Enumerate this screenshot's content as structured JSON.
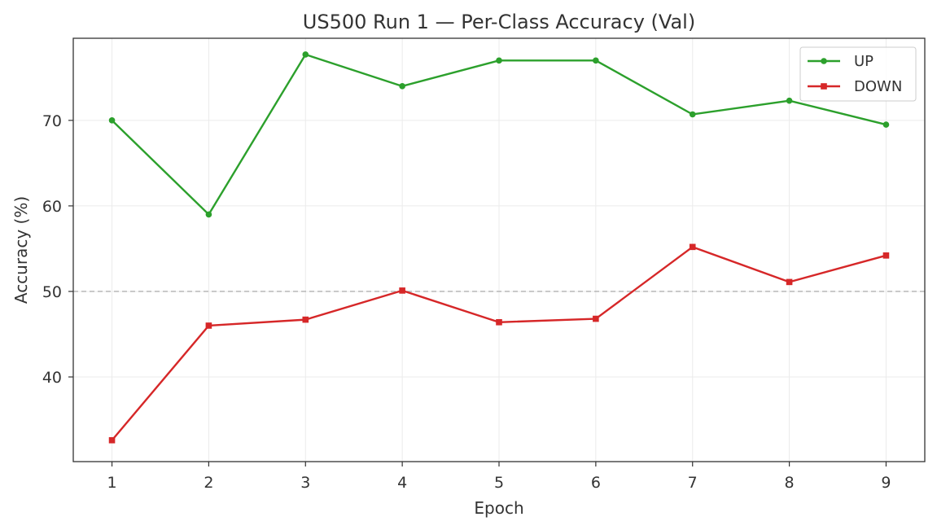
{
  "chart_data": {
    "type": "line",
    "title": "US500 Run 1 — Per-Class Accuracy (Val)",
    "xlabel": "Epoch",
    "ylabel": "Accuracy (%)",
    "x": [
      1,
      2,
      3,
      4,
      5,
      6,
      7,
      8,
      9
    ],
    "x_ticks": [
      "1",
      "2",
      "3",
      "4",
      "5",
      "6",
      "7",
      "8",
      "9"
    ],
    "y_ticks": [
      "40",
      "50",
      "60",
      "70"
    ],
    "xlim": [
      0.6,
      9.4
    ],
    "ylim": [
      30.1,
      79.6
    ],
    "grid": true,
    "legend_position": "top-right",
    "reference_line": {
      "y": 50,
      "style": "dashed",
      "color": "#b0b0b0"
    },
    "series": [
      {
        "name": "UP",
        "color": "#2ca02c",
        "marker": "circle",
        "values": [
          70.0,
          59.0,
          77.7,
          74.0,
          77.0,
          77.0,
          70.7,
          72.3,
          69.5
        ]
      },
      {
        "name": "DOWN",
        "color": "#d62728",
        "marker": "square",
        "values": [
          32.6,
          46.0,
          46.7,
          50.1,
          46.4,
          46.8,
          55.2,
          51.1,
          54.2
        ]
      }
    ]
  }
}
